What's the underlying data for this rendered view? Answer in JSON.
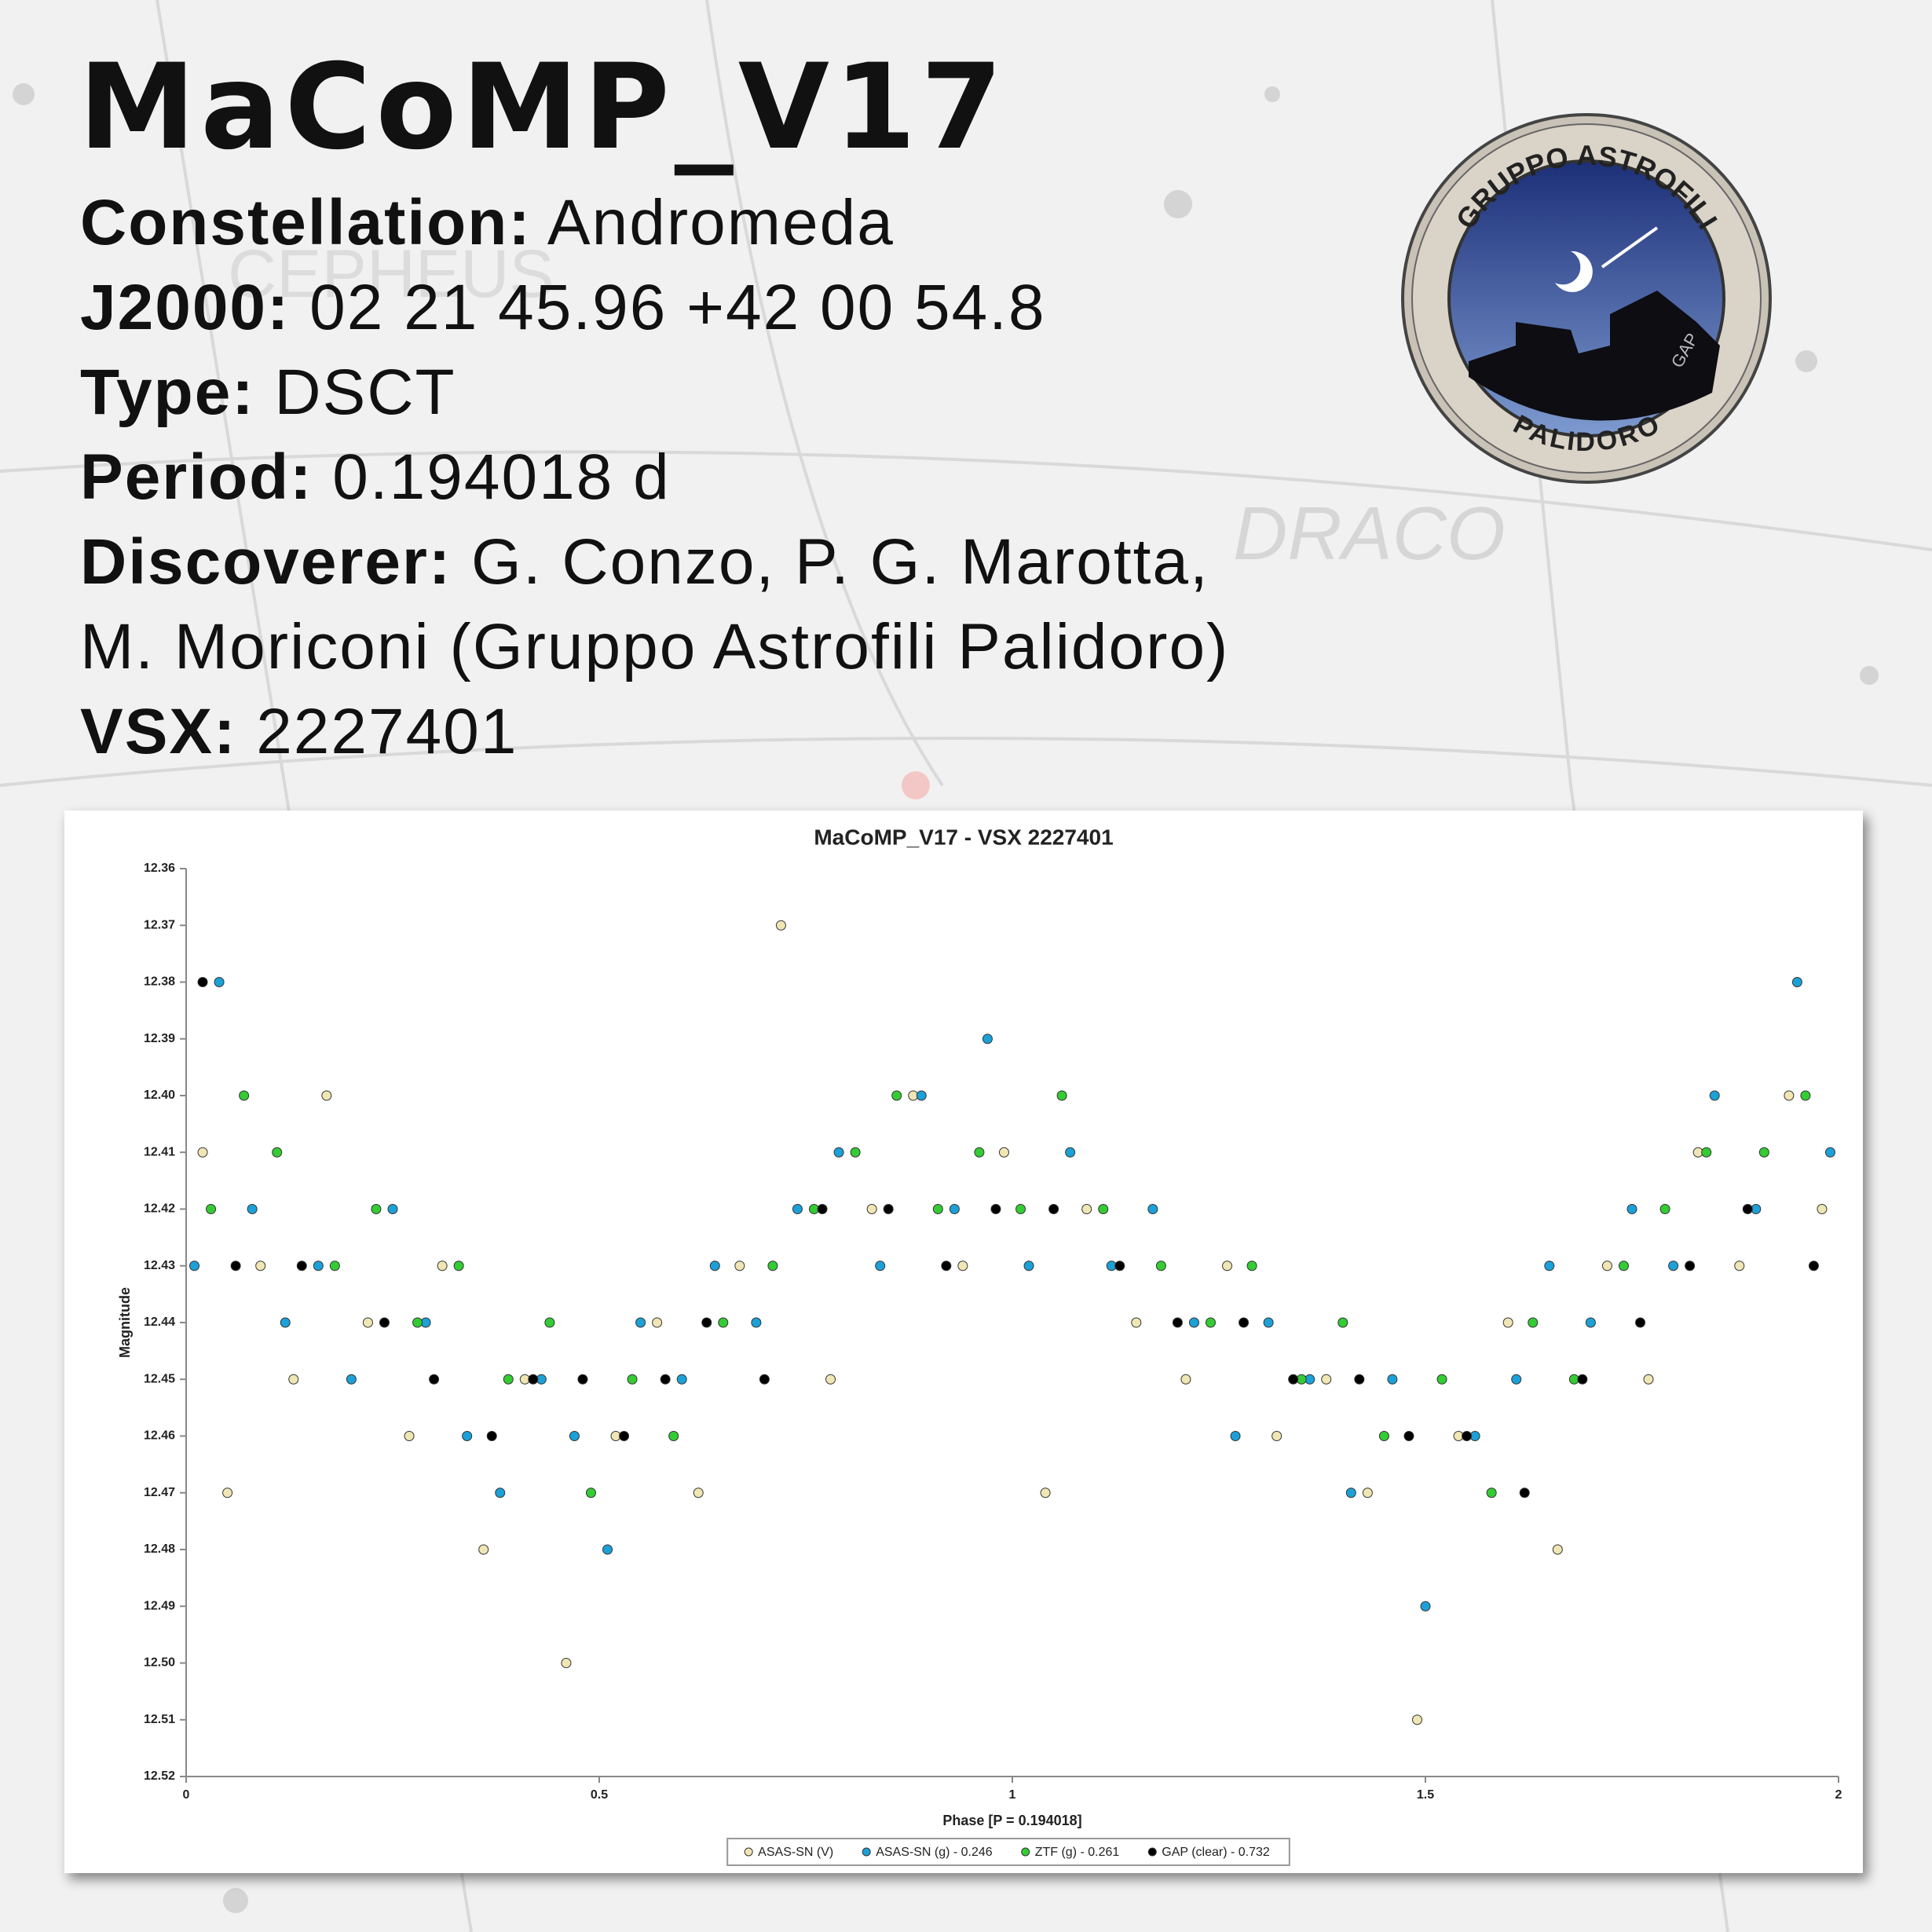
{
  "header": {
    "title": "MaCoMP_V17"
  },
  "info": [
    {
      "label": "Constellation:",
      "value": "Andromeda"
    },
    {
      "label": "J2000:",
      "value": "02 21 45.96 +42 00 54.8"
    },
    {
      "label": "Type:",
      "value": "DSCT"
    },
    {
      "label": "Period:",
      "value": "0.194018 d"
    },
    {
      "label": "Discoverer:",
      "value": "G. Conzo, P. G. Marotta,"
    },
    {
      "value": "M. Moriconi (Gruppo Astrofili Palidoro)"
    },
    {
      "label": "VSX:",
      "value": "2227401"
    }
  ],
  "logo": {
    "top_text": "GRUPPO ASTROFILI",
    "bottom_text": "PALIDORO",
    "monogram": "GAP"
  },
  "background_labels": [
    "CEPHEUS",
    "DRACO"
  ],
  "chart_data": {
    "type": "scatter",
    "title": "MaCoMP_V17 - VSX 2227401",
    "x_label": "Phase [P = 0.194018]",
    "y_label": "Magnitude",
    "xlim": [
      0,
      2
    ],
    "xticks": [
      0,
      0.5,
      1,
      1.5,
      2
    ],
    "ylim": [
      12.52,
      12.36
    ],
    "yticks": [
      {
        "value": 12.36,
        "label": "12.36"
      },
      {
        "value": 12.37,
        "label": "12.37"
      },
      {
        "value": 12.38,
        "label": "12.38"
      },
      {
        "value": 12.39,
        "label": "12.39"
      },
      {
        "value": 12.4,
        "label": "12.40"
      },
      {
        "value": 12.41,
        "label": "12.41"
      },
      {
        "value": 12.42,
        "label": "12.42"
      },
      {
        "value": 12.43,
        "label": "12.43"
      },
      {
        "value": 12.44,
        "label": "12.44"
      },
      {
        "value": 12.45,
        "label": "12.45"
      },
      {
        "value": 12.46,
        "label": "12.46"
      },
      {
        "value": 12.47,
        "label": "12.47"
      },
      {
        "value": 12.48,
        "label": "12.48"
      },
      {
        "value": 12.49,
        "label": "12.49"
      },
      {
        "value": 12.5,
        "label": "12.50"
      },
      {
        "value": 12.51,
        "label": "12.51"
      },
      {
        "value": 12.52,
        "label": "12.52"
      }
    ],
    "legend": "bottom",
    "series": [
      {
        "name": "ASAS-SN (V)",
        "color": "#efe6b4",
        "x": [
          0.02,
          0.05,
          0.09,
          0.13,
          0.17,
          0.22,
          0.27,
          0.31,
          0.36,
          0.41,
          0.46,
          0.52,
          0.57,
          0.62,
          0.67,
          0.72,
          0.78,
          0.83,
          0.88,
          0.94,
          0.99,
          1.04,
          1.09,
          1.15,
          1.21,
          1.26,
          1.32,
          1.38,
          1.43,
          1.49,
          1.54,
          1.6,
          1.66,
          1.72,
          1.77,
          1.83,
          1.88,
          1.94,
          1.98
        ],
        "values": [
          12.41,
          12.47,
          12.43,
          12.45,
          12.4,
          12.44,
          12.46,
          12.43,
          12.48,
          12.45,
          12.5,
          12.46,
          12.44,
          12.47,
          12.43,
          12.37,
          12.45,
          12.42,
          12.4,
          12.43,
          12.41,
          12.47,
          12.42,
          12.44,
          12.45,
          12.43,
          12.46,
          12.45,
          12.47,
          12.51,
          12.46,
          12.44,
          12.48,
          12.43,
          12.45,
          12.41,
          12.43,
          12.4,
          12.42
        ]
      },
      {
        "name": "ASAS-SN (g) - 0.246",
        "color": "#1ba1d8",
        "x": [
          0.01,
          0.04,
          0.08,
          0.12,
          0.16,
          0.2,
          0.25,
          0.29,
          0.34,
          0.38,
          0.43,
          0.47,
          0.51,
          0.55,
          0.6,
          0.64,
          0.69,
          0.74,
          0.79,
          0.84,
          0.89,
          0.93,
          0.97,
          1.02,
          1.07,
          1.12,
          1.17,
          1.22,
          1.27,
          1.31,
          1.36,
          1.41,
          1.46,
          1.5,
          1.56,
          1.61,
          1.65,
          1.7,
          1.75,
          1.8,
          1.85,
          1.9,
          1.95,
          1.99
        ],
        "values": [
          12.43,
          12.38,
          12.42,
          12.44,
          12.43,
          12.45,
          12.42,
          12.44,
          12.46,
          12.47,
          12.45,
          12.46,
          12.48,
          12.44,
          12.45,
          12.43,
          12.44,
          12.42,
          12.41,
          12.43,
          12.4,
          12.42,
          12.39,
          12.43,
          12.41,
          12.43,
          12.42,
          12.44,
          12.46,
          12.44,
          12.45,
          12.47,
          12.45,
          12.49,
          12.46,
          12.45,
          12.43,
          12.44,
          12.42,
          12.43,
          12.4,
          12.42,
          12.38,
          12.41
        ]
      },
      {
        "name": "ZTF (g) - 0.261",
        "color": "#33cc33",
        "x": [
          0.03,
          0.07,
          0.11,
          0.18,
          0.23,
          0.28,
          0.33,
          0.39,
          0.44,
          0.49,
          0.54,
          0.59,
          0.65,
          0.71,
          0.76,
          0.81,
          0.86,
          0.91,
          0.96,
          1.01,
          1.06,
          1.11,
          1.18,
          1.24,
          1.29,
          1.35,
          1.4,
          1.45,
          1.52,
          1.58,
          1.63,
          1.68,
          1.74,
          1.79,
          1.84,
          1.91,
          1.96
        ],
        "values": [
          12.42,
          12.4,
          12.41,
          12.43,
          12.42,
          12.44,
          12.43,
          12.45,
          12.44,
          12.47,
          12.45,
          12.46,
          12.44,
          12.43,
          12.42,
          12.41,
          12.4,
          12.42,
          12.41,
          12.42,
          12.4,
          12.42,
          12.43,
          12.44,
          12.43,
          12.45,
          12.44,
          12.46,
          12.45,
          12.47,
          12.44,
          12.45,
          12.43,
          12.42,
          12.41,
          12.41,
          12.4
        ]
      },
      {
        "name": "GAP (clear) - 0.732",
        "color": "#000000",
        "x": [
          0.02,
          0.06,
          0.14,
          0.24,
          0.3,
          0.37,
          0.42,
          0.48,
          0.53,
          0.58,
          0.63,
          0.7,
          0.77,
          0.85,
          0.92,
          0.98,
          1.05,
          1.13,
          1.2,
          1.28,
          1.34,
          1.42,
          1.48,
          1.55,
          1.62,
          1.69,
          1.76,
          1.82,
          1.89,
          1.97
        ],
        "values": [
          12.38,
          12.43,
          12.43,
          12.44,
          12.45,
          12.46,
          12.45,
          12.45,
          12.46,
          12.45,
          12.44,
          12.45,
          12.42,
          12.42,
          12.43,
          12.42,
          12.42,
          12.43,
          12.44,
          12.44,
          12.45,
          12.45,
          12.46,
          12.46,
          12.47,
          12.45,
          12.44,
          12.43,
          12.42,
          12.43
        ]
      }
    ]
  }
}
